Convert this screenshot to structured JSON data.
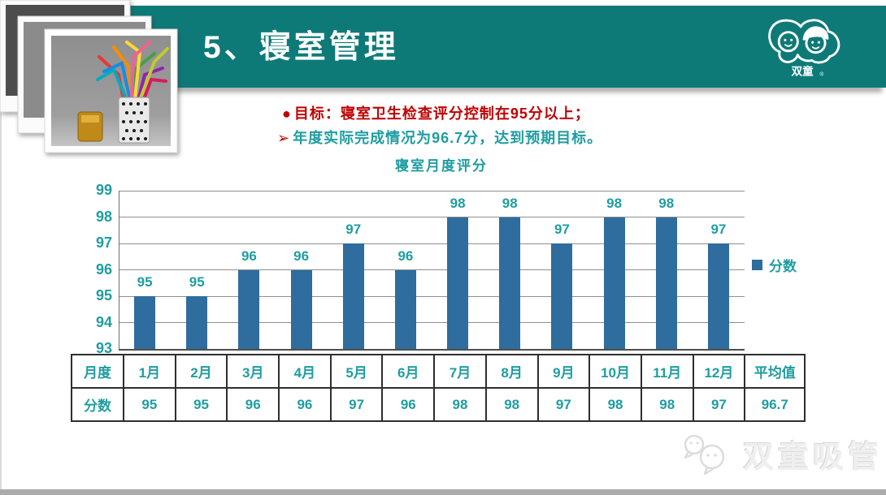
{
  "header": {
    "title": "5、寝室管理",
    "logo": {
      "brand": "双童",
      "registered_mark": "®"
    }
  },
  "bullets": {
    "goal_marker": "●",
    "goal": "目标：寝室卫生检查评分控制在95分以上；",
    "result_marker": "➢",
    "result": "年度实际完成情况为96.7分，达到预期目标。"
  },
  "chart_data": {
    "type": "bar",
    "title": "寝室月度评分",
    "categories": [
      "1月",
      "2月",
      "3月",
      "4月",
      "5月",
      "6月",
      "7月",
      "8月",
      "9月",
      "10月",
      "11月",
      "12月"
    ],
    "series": [
      {
        "name": "分数",
        "values": [
          95,
          95,
          96,
          96,
          97,
          96,
          98,
          98,
          97,
          98,
          98,
          97
        ]
      }
    ],
    "ylim": [
      93,
      99
    ],
    "ytick_step": 1,
    "grid": true,
    "value_labels": true,
    "legend": [
      "分数"
    ],
    "legend_position": "right",
    "bar_color": "#2e6d9e",
    "xlabel": "",
    "ylabel": ""
  },
  "table": {
    "headers_row_label": "月度",
    "values_row_label": "分数",
    "columns": [
      "1月",
      "2月",
      "3月",
      "4月",
      "5月",
      "6月",
      "7月",
      "8月",
      "9月",
      "10月",
      "11月",
      "12月",
      "平均值"
    ],
    "values": [
      "95",
      "95",
      "96",
      "96",
      "97",
      "96",
      "98",
      "98",
      "97",
      "98",
      "98",
      "97",
      "96.7"
    ]
  },
  "footer": {
    "watermark": "双童吸管"
  },
  "colors": {
    "band_teal": "#0e7a78",
    "text_teal": "#1f9da1",
    "text_red": "#c00000",
    "bar_blue": "#2e6d9e",
    "grid_gray": "#8f8f8f",
    "table_border": "#2e2e2e",
    "bottom_bar_gray": "#ababab"
  }
}
